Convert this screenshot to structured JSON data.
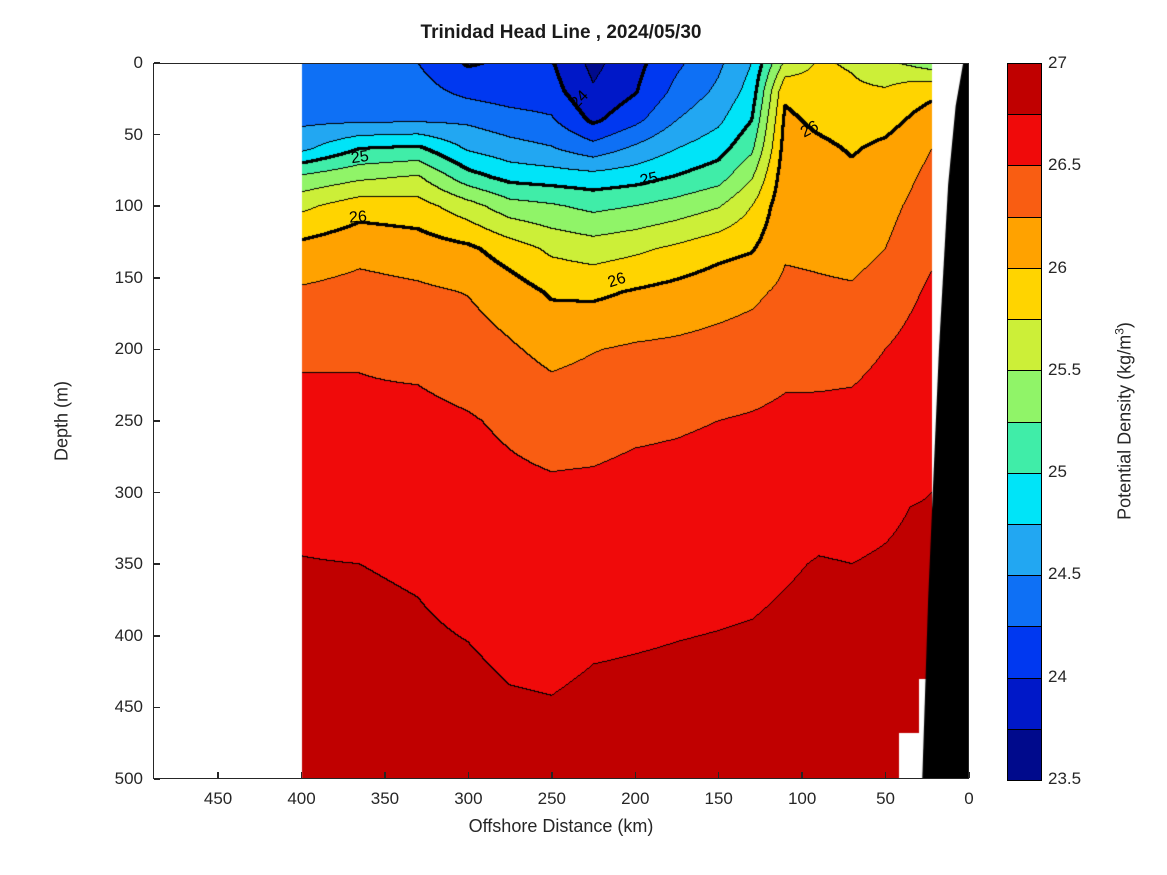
{
  "title": "Trinidad Head Line , 2024/05/30",
  "axes": {
    "xlabel": "Offshore Distance (km)",
    "ylabel": "Depth (m)",
    "x_ticks": [
      450,
      400,
      350,
      300,
      250,
      200,
      150,
      100,
      50,
      0
    ],
    "y_ticks": [
      0,
      50,
      100,
      150,
      200,
      250,
      300,
      350,
      400,
      450,
      500
    ],
    "x_left_edge_km": 489,
    "x_right_edge_km": 0,
    "depth_max_m": 500,
    "tick_direction": "in",
    "axis_color": "#262626"
  },
  "colorbar": {
    "label_pre": "Potential Density (kg/m",
    "label_sup": "3",
    "label_post": ")",
    "ticks": [
      27,
      26.5,
      26,
      25.5,
      25,
      24.5,
      24,
      23.5
    ],
    "min": 23.5,
    "max": 27
  },
  "chart_data": {
    "type": "filled_contour",
    "title": "Trinidad Head Line , 2024/05/30",
    "xlabel": "Offshore Distance (km)",
    "ylabel": "Depth (m)",
    "colorbar_label": "Potential Density (kg/m3)",
    "x_axis_reversed": true,
    "levels_start": 23.5,
    "levels_step": 0.25,
    "levels_end": 27,
    "thick_labeled_levels": [
      24,
      25,
      26
    ],
    "palette_low_to_high": [
      "#000A8C",
      "#0018C8",
      "#0038F0",
      "#0E70F5",
      "#22A7F2",
      "#00E4F8",
      "#40EDA8",
      "#90F468",
      "#CCEF38",
      "#FFD400",
      "#FFA200",
      "#F95D12",
      "#F00A0A",
      "#C00000"
    ],
    "land_color": "#000000",
    "no_data_color": "#FFFFFF",
    "stations_km": [
      400,
      365,
      330,
      300,
      275,
      250,
      225,
      200,
      175,
      150,
      130,
      110,
      90,
      70,
      50,
      35,
      22
    ],
    "depth_levels_m": [
      0,
      20,
      40,
      60,
      80,
      100,
      130,
      160,
      200,
      250,
      300,
      350,
      420,
      500
    ],
    "sigma_theta": [
      [
        24.35,
        24.39,
        24.44,
        24.69,
        25.3,
        25.69,
        26.08,
        26.28,
        26.46,
        26.58,
        26.67,
        26.76,
        26.82,
        26.88
      ],
      [
        24.3,
        24.38,
        24.45,
        25.0,
        25.45,
        25.89,
        26.18,
        26.33,
        26.48,
        26.54,
        26.62,
        26.75,
        26.81,
        26.87
      ],
      [
        24.25,
        24.35,
        24.46,
        25.05,
        25.53,
        25.85,
        26.13,
        26.29,
        26.44,
        26.56,
        26.64,
        26.73,
        26.79,
        26.86
      ],
      [
        23.97,
        24.18,
        24.45,
        24.72,
        25.1,
        25.6,
        26.05,
        26.24,
        26.37,
        26.52,
        26.6,
        26.68,
        26.77,
        26.85
      ],
      [
        24.05,
        24.12,
        24.35,
        24.6,
        24.92,
        25.35,
        25.88,
        26.12,
        26.28,
        26.46,
        26.56,
        26.63,
        26.73,
        26.84
      ],
      [
        24.02,
        24.1,
        24.28,
        24.52,
        24.88,
        25.28,
        25.7,
        25.97,
        26.18,
        26.4,
        26.54,
        26.62,
        26.72,
        26.83
      ],
      [
        23.68,
        23.78,
        23.95,
        24.35,
        24.85,
        25.18,
        25.63,
        25.95,
        26.24,
        26.41,
        26.55,
        26.64,
        26.75,
        26.85
      ],
      [
        23.92,
        23.98,
        24.18,
        24.55,
        24.9,
        25.25,
        25.7,
        26.02,
        26.28,
        26.45,
        26.58,
        26.66,
        26.76,
        26.86
      ],
      [
        24.2,
        24.32,
        24.5,
        24.75,
        25.02,
        25.35,
        25.8,
        26.08,
        26.3,
        26.47,
        26.59,
        26.68,
        26.77,
        26.86
      ],
      [
        24.45,
        24.55,
        24.7,
        24.9,
        25.15,
        25.48,
        25.92,
        26.15,
        26.33,
        26.5,
        26.61,
        26.69,
        26.78,
        26.87
      ],
      [
        24.75,
        24.85,
        25.0,
        25.2,
        25.48,
        25.75,
        25.98,
        26.2,
        26.36,
        26.52,
        26.62,
        26.7,
        26.79,
        26.87
      ],
      [
        25.55,
        25.95,
        26.05,
        26.1,
        26.15,
        26.18,
        26.22,
        26.3,
        26.42,
        26.55,
        26.65,
        26.73,
        26.81,
        26.88
      ],
      [
        25.78,
        25.85,
        25.95,
        26.05,
        26.12,
        26.16,
        26.21,
        26.28,
        26.41,
        26.56,
        26.67,
        26.76,
        26.83,
        26.89
      ],
      [
        25.72,
        25.8,
        25.9,
        25.98,
        26.05,
        26.12,
        26.19,
        26.27,
        26.42,
        26.57,
        26.67,
        26.75,
        26.83,
        26.89
      ],
      [
        25.55,
        25.78,
        25.92,
        26.05,
        26.12,
        26.18,
        26.25,
        26.33,
        26.5,
        26.62,
        26.7,
        26.77,
        26.84,
        26.9
      ],
      [
        25.45,
        25.9,
        26.02,
        26.15,
        26.22,
        26.28,
        26.35,
        26.45,
        26.58,
        26.68,
        26.74,
        26.79,
        26.86,
        26.91
      ],
      [
        25.35,
        25.95,
        26.1,
        26.25,
        26.32,
        26.38,
        26.45,
        26.55,
        26.65,
        26.72,
        26.75,
        26.78,
        26.87,
        26.92
      ]
    ],
    "shallow_masks": [
      {
        "km_lt": 42,
        "depth_gt": 468
      },
      {
        "km_lt": 30,
        "depth_gt": 430
      }
    ],
    "land_polygon_km_depth": [
      [
        3.5,
        0
      ],
      [
        8,
        30
      ],
      [
        12.5,
        85
      ],
      [
        18,
        200
      ],
      [
        24.5,
        375
      ],
      [
        28,
        500
      ],
      [
        0,
        500
      ],
      [
        0,
        0
      ]
    ],
    "contour_labels": [
      {
        "text": "25",
        "km": 365,
        "depth": 66,
        "rot": -8
      },
      {
        "text": "26",
        "km": 366,
        "depth": 108,
        "rot": -5
      },
      {
        "text": "25",
        "km": 192,
        "depth": 82,
        "rot": -12
      },
      {
        "text": "26",
        "km": 211,
        "depth": 152,
        "rot": -18
      },
      {
        "text": "24",
        "km": 233,
        "depth": 26,
        "rot": -46
      },
      {
        "text": "26",
        "km": 95,
        "depth": 47,
        "rot": -28
      }
    ]
  }
}
